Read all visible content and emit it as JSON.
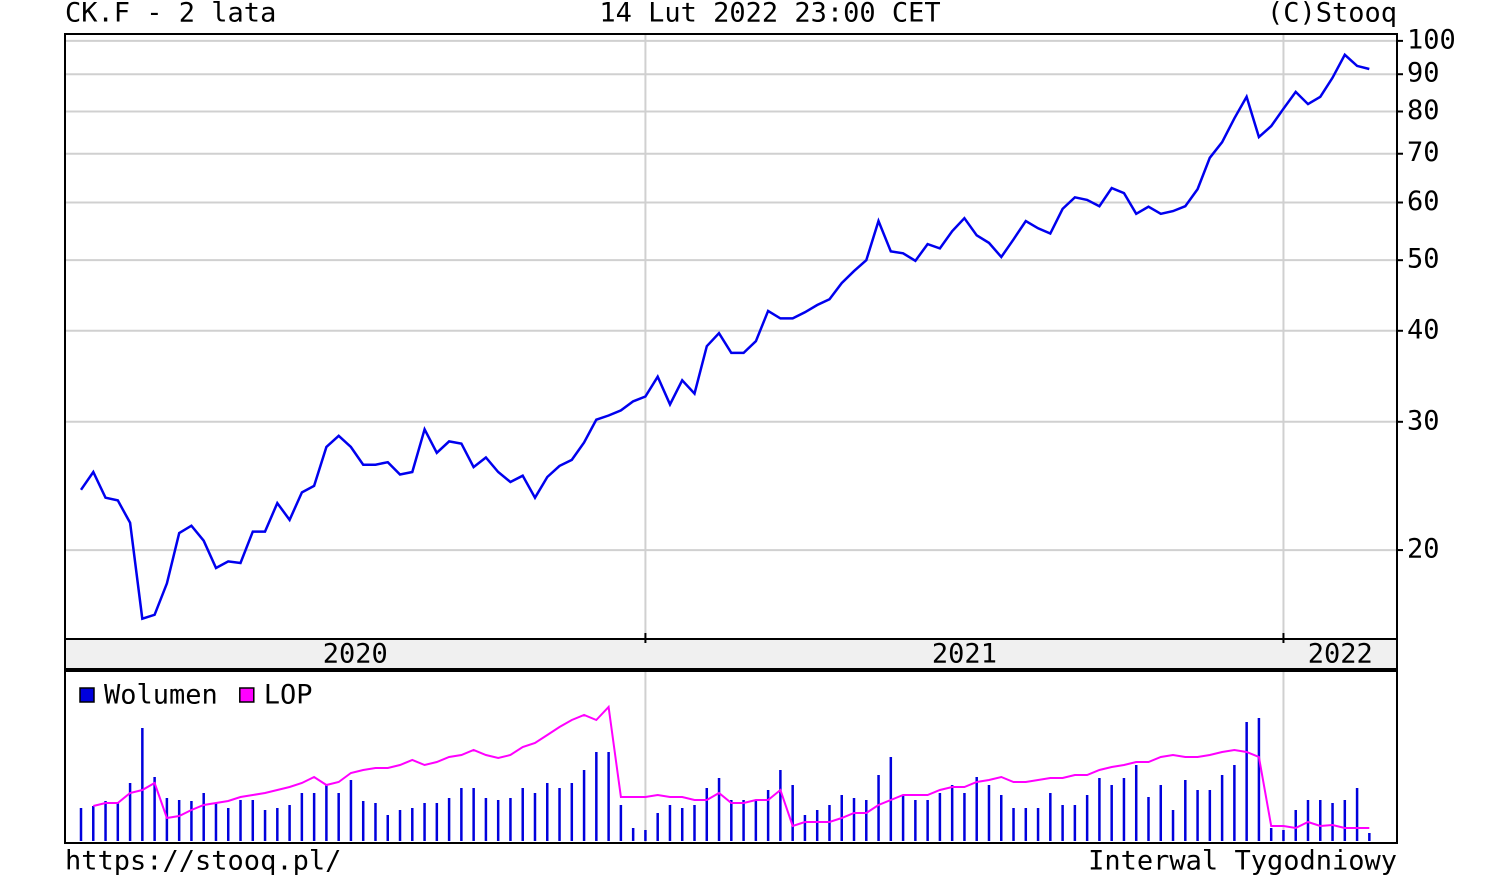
{
  "header": {
    "left": "CK.F - 2 lata",
    "center": "14 Lut 2022 23:00 CET",
    "right": "(C)Stooq"
  },
  "footer": {
    "left": "https://stooq.pl/",
    "right": "Interwal Tygodniowy"
  },
  "chart_data": [
    {
      "type": "line",
      "log_scale": true,
      "grid": true,
      "color": "#0000ee",
      "x_labels": [
        "2020",
        "2021",
        "2022"
      ],
      "ylim": [
        15.1,
        102.2
      ],
      "yticks": [
        20,
        30,
        40,
        50,
        60,
        70,
        80,
        90,
        100
      ],
      "values": [
        24.2,
        25.6,
        23.6,
        23.4,
        21.8,
        16.1,
        16.3,
        18.0,
        21.1,
        21.6,
        20.6,
        18.9,
        19.3,
        19.2,
        21.2,
        21.2,
        23.2,
        22.0,
        24.0,
        24.5,
        27.7,
        28.7,
        27.7,
        26.2,
        26.2,
        26.4,
        25.4,
        25.6,
        29.3,
        27.2,
        28.2,
        28.0,
        26.0,
        26.8,
        25.6,
        24.8,
        25.3,
        23.6,
        25.2,
        26.1,
        26.6,
        28.1,
        30.2,
        30.6,
        31.1,
        32.0,
        32.5,
        34.6,
        31.7,
        34.2,
        32.8,
        38.1,
        39.7,
        37.3,
        37.3,
        38.7,
        42.6,
        41.6,
        41.6,
        42.4,
        43.4,
        44.2,
        46.5,
        48.3,
        50.0,
        56.6,
        51.4,
        51.1,
        49.9,
        52.6,
        51.9,
        54.8,
        57.1,
        54.1,
        52.8,
        50.5,
        53.4,
        56.6,
        55.3,
        54.4,
        58.8,
        61.0,
        60.5,
        59.3,
        62.8,
        61.8,
        57.9,
        59.2,
        57.9,
        58.4,
        59.3,
        62.6,
        69.1,
        72.6,
        78.3,
        83.8,
        73.8,
        76.4,
        80.7,
        85.1,
        81.9,
        83.8,
        89.0,
        95.7,
        92.4,
        91.5
      ]
    },
    {
      "type": "bar",
      "ylim": [
        0,
        170
      ],
      "legend": "top-left",
      "series": [
        {
          "name": "Wolumen",
          "color": "#0000dd",
          "values": [
            33,
            35,
            40,
            38,
            58,
            113,
            64,
            43,
            41,
            40,
            48,
            38,
            33,
            41,
            41,
            31,
            33,
            36,
            48,
            48,
            56,
            48,
            61,
            40,
            38,
            26,
            31,
            33,
            38,
            38,
            43,
            53,
            53,
            43,
            41,
            43,
            53,
            48,
            58,
            53,
            58,
            71,
            89,
            89,
            36,
            13,
            11,
            28,
            36,
            33,
            36,
            53,
            63,
            41,
            41,
            41,
            51,
            71,
            56,
            26,
            31,
            36,
            46,
            43,
            41,
            66,
            84,
            46,
            41,
            41,
            48,
            56,
            48,
            64,
            56,
            46,
            33,
            33,
            33,
            48,
            36,
            36,
            46,
            63,
            56,
            63,
            76,
            44,
            56,
            31,
            61,
            51,
            51,
            66,
            76,
            119,
            123,
            13,
            11,
            31,
            41,
            41,
            38,
            41,
            53,
            8
          ]
        },
        {
          "name": "LOP",
          "color": "#ff00ff",
          "type": "line",
          "values": [
            null,
            35,
            38,
            38,
            48,
            51,
            58,
            23,
            25,
            31,
            36,
            38,
            40,
            44,
            46,
            48,
            51,
            54,
            58,
            64,
            56,
            59,
            68,
            71,
            73,
            73,
            76,
            81,
            76,
            79,
            84,
            86,
            91,
            86,
            83,
            86,
            94,
            98,
            106,
            114,
            121,
            126,
            121,
            134,
            44,
            44,
            44,
            46,
            44,
            44,
            41,
            41,
            48,
            38,
            38,
            41,
            41,
            51,
            15,
            19,
            19,
            19,
            23,
            28,
            28,
            36,
            41,
            46,
            46,
            46,
            51,
            54,
            54,
            59,
            61,
            64,
            59,
            59,
            61,
            63,
            63,
            66,
            66,
            71,
            74,
            76,
            79,
            79,
            84,
            86,
            84,
            84,
            86,
            89,
            91,
            89,
            84,
            15,
            15,
            13,
            19,
            15,
            16,
            13,
            13,
            13
          ]
        }
      ]
    }
  ]
}
